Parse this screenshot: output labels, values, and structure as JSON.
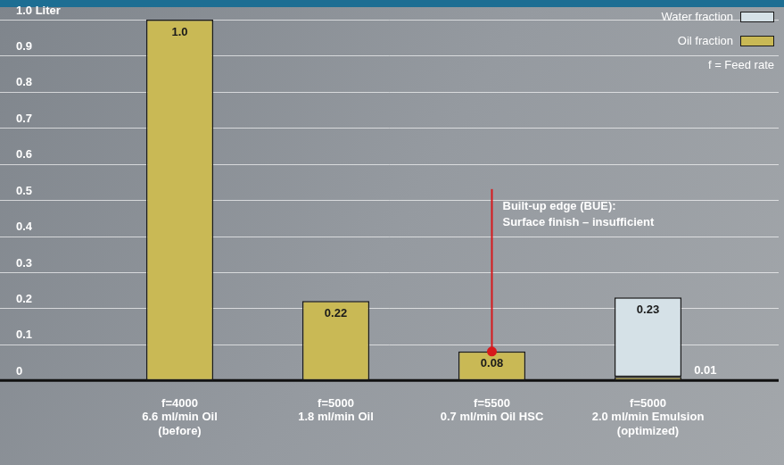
{
  "chart_data": {
    "type": "bar",
    "stacked": true,
    "categories": [
      [
        "f=4000",
        "6.6 ml/min Oil",
        "(before)"
      ],
      [
        "f=5000",
        "1.8 ml/min Oil"
      ],
      [
        "f=5500",
        "0.7 ml/min Oil HSC"
      ],
      [
        "f=5000",
        "2.0 ml/min Emulsion",
        "(optimized)"
      ]
    ],
    "series": [
      {
        "name": "Water fraction",
        "color": "#d5e1e7",
        "values": [
          null,
          null,
          null,
          0.22
        ]
      },
      {
        "name": "Oil fraction",
        "color": "#c9b955",
        "values": [
          1.0,
          0.22,
          0.08,
          0.01
        ],
        "data_labels": true,
        "value_labels": [
          "1.0",
          "0.22",
          "0.08",
          "0.01"
        ],
        "notes": [
          null,
          null,
          [
            "Built-up edge (BUE):",
            "Surface finish – insufficient"
          ],
          null
        ]
      }
    ],
    "totals": [
      null,
      null,
      null,
      0.23
    ],
    "legend": "upper right",
    "legend_note": "f = Feed rate",
    "ylim": [
      0,
      1.0
    ],
    "yticks": [
      0,
      0.1,
      0.2,
      0.3,
      0.4,
      0.5,
      0.6,
      0.7,
      0.8,
      0.9,
      {
        "value": 1.0,
        "label": "1.0 Liter"
      }
    ],
    "grid": true
  }
}
